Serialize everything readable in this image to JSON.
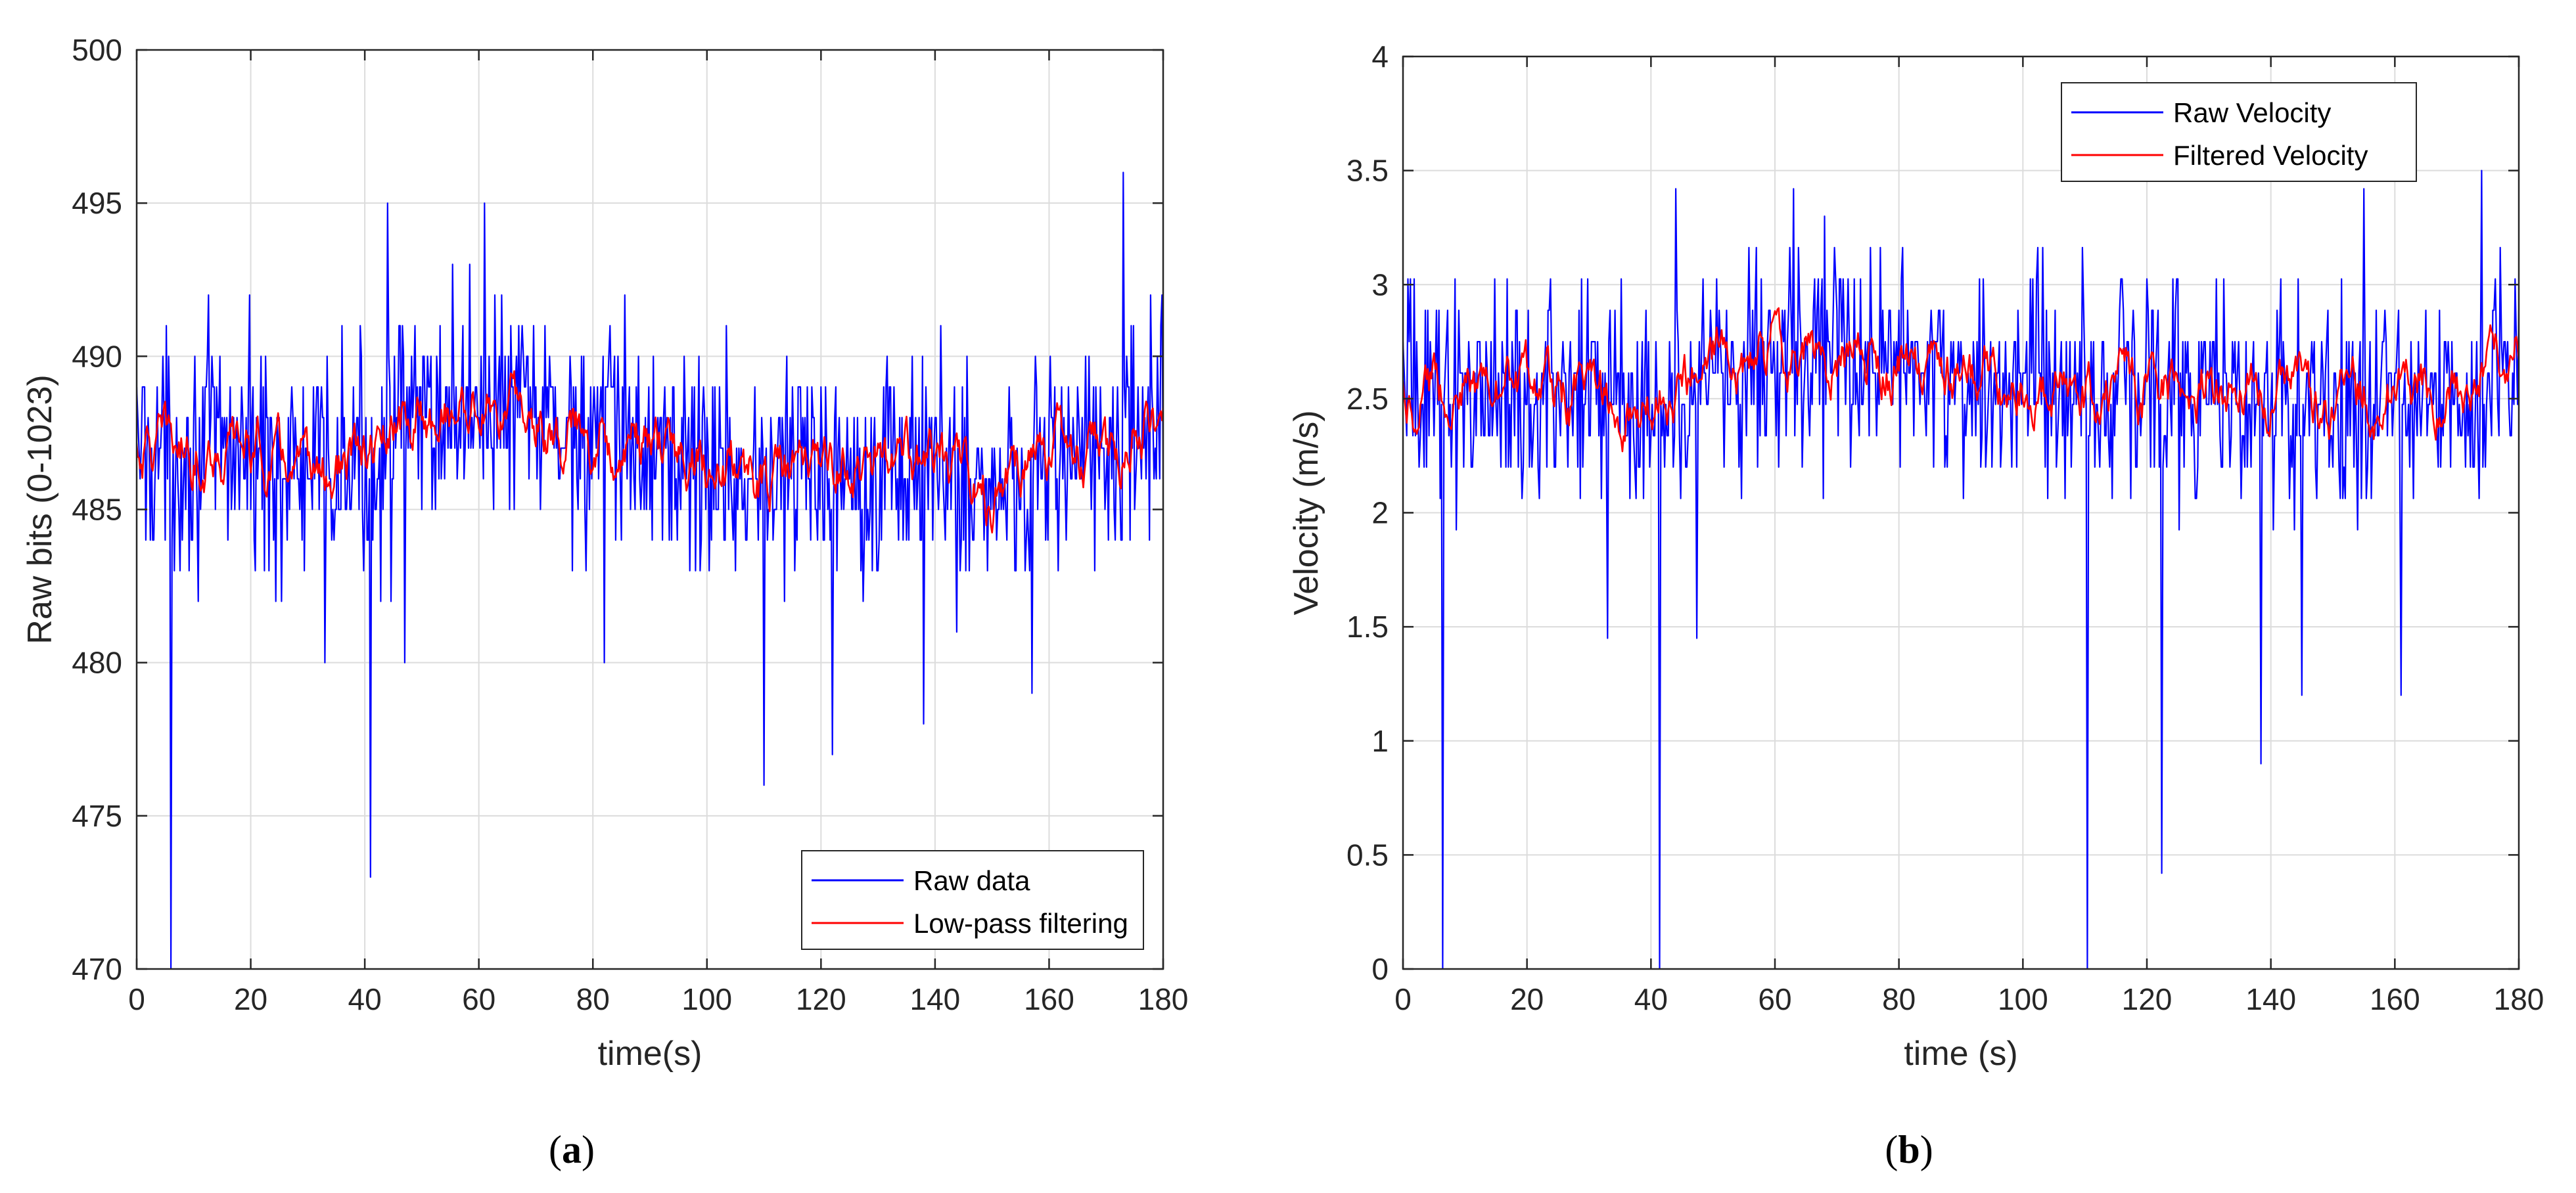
{
  "chart_data": [
    {
      "type": "line",
      "panel": "a",
      "caption_open": "(",
      "caption_letter": "a",
      "caption_close": ")",
      "title": "",
      "xlabel": "time(s)",
      "ylabel": "Raw bits (0-1023)",
      "xlim": [
        0,
        180
      ],
      "ylim": [
        470,
        500
      ],
      "xticks": [
        0,
        20,
        40,
        60,
        80,
        100,
        120,
        140,
        160,
        180
      ],
      "yticks": [
        470,
        475,
        480,
        485,
        490,
        495,
        500
      ],
      "grid": true,
      "legend_position": "bottom-right",
      "series": [
        {
          "name": "Raw data",
          "color": "#0000ff",
          "noisy": true,
          "baseline": [
            [
              0,
              487
            ],
            [
              20,
              487
            ],
            [
              30,
              486
            ],
            [
              40,
              486.5
            ],
            [
              50,
              488
            ],
            [
              60,
              488.5
            ],
            [
              70,
              488
            ],
            [
              80,
              487.5
            ],
            [
              90,
              487
            ],
            [
              100,
              486.5
            ],
            [
              110,
              486
            ],
            [
              120,
              486.5
            ],
            [
              130,
              486.5
            ],
            [
              140,
              486.5
            ],
            [
              150,
              485.5
            ],
            [
              160,
              487
            ],
            [
              170,
              486.5
            ],
            [
              180,
              488
            ]
          ],
          "spread": 3.2,
          "outliers": [
            [
              6,
              470
            ],
            [
              41,
              473
            ],
            [
              44,
              495
            ],
            [
              61,
              495
            ],
            [
              110,
              476
            ],
            [
              122,
              477
            ],
            [
              138,
              478
            ],
            [
              173,
              496
            ],
            [
              157,
              479
            ],
            [
              33,
              480
            ],
            [
              47,
              480
            ],
            [
              82,
              480
            ]
          ],
          "sample_interval": 0.2
        },
        {
          "name": "Low-pass filtering",
          "color": "#ff0000",
          "noisy": true,
          "baseline": [
            [
              0,
              487
            ],
            [
              20,
              487
            ],
            [
              30,
              486
            ],
            [
              40,
              486.5
            ],
            [
              50,
              488
            ],
            [
              60,
              488.5
            ],
            [
              70,
              488
            ],
            [
              80,
              487.5
            ],
            [
              90,
              487
            ],
            [
              100,
              486.5
            ],
            [
              110,
              486
            ],
            [
              120,
              486.5
            ],
            [
              130,
              486.5
            ],
            [
              140,
              486.5
            ],
            [
              150,
              485.5
            ],
            [
              160,
              487
            ],
            [
              170,
              486.5
            ],
            [
              180,
              488
            ]
          ],
          "spread": 1.0,
          "sample_interval": 0.2
        }
      ]
    },
    {
      "type": "line",
      "panel": "b",
      "caption_open": "(",
      "caption_letter": "b",
      "caption_close": ")",
      "title": "",
      "xlabel": "time (s)",
      "ylabel": "Velocity (m/s)",
      "xlim": [
        0,
        180
      ],
      "ylim": [
        0,
        4
      ],
      "xticks": [
        0,
        20,
        40,
        60,
        80,
        100,
        120,
        140,
        160,
        180
      ],
      "yticks": [
        0,
        0.5,
        1,
        1.5,
        2,
        2.5,
        3,
        3.5,
        4
      ],
      "grid": true,
      "legend_position": "top-right",
      "series": [
        {
          "name": "Raw Velocity",
          "color": "#0000ff",
          "noisy": true,
          "baseline": [
            [
              0,
              2.55
            ],
            [
              20,
              2.55
            ],
            [
              30,
              2.5
            ],
            [
              40,
              2.5
            ],
            [
              50,
              2.65
            ],
            [
              60,
              2.7
            ],
            [
              70,
              2.7
            ],
            [
              80,
              2.65
            ],
            [
              90,
              2.6
            ],
            [
              100,
              2.55
            ],
            [
              110,
              2.5
            ],
            [
              120,
              2.55
            ],
            [
              130,
              2.55
            ],
            [
              140,
              2.5
            ],
            [
              150,
              2.45
            ],
            [
              160,
              2.55
            ],
            [
              170,
              2.5
            ],
            [
              180,
              2.7
            ]
          ],
          "spread": 0.42,
          "outliers": [
            [
              6.5,
              0
            ],
            [
              41.5,
              0
            ],
            [
              110.5,
              0
            ],
            [
              122.5,
              0.42
            ],
            [
              138.5,
              0.9
            ],
            [
              161,
              1.2
            ],
            [
              33,
              1.45
            ],
            [
              47.5,
              1.45
            ],
            [
              145,
              1.2
            ],
            [
              44,
              3.42
            ],
            [
              63,
              3.42
            ],
            [
              174,
              3.5
            ],
            [
              155,
              3.42
            ]
          ],
          "sample_interval": 0.2
        },
        {
          "name": "Filtered Velocity",
          "color": "#ff0000",
          "noisy": true,
          "baseline": [
            [
              0,
              2.55
            ],
            [
              20,
              2.55
            ],
            [
              30,
              2.5
            ],
            [
              40,
              2.5
            ],
            [
              50,
              2.65
            ],
            [
              60,
              2.7
            ],
            [
              70,
              2.7
            ],
            [
              80,
              2.65
            ],
            [
              90,
              2.6
            ],
            [
              100,
              2.55
            ],
            [
              110,
              2.5
            ],
            [
              120,
              2.55
            ],
            [
              130,
              2.55
            ],
            [
              140,
              2.5
            ],
            [
              150,
              2.45
            ],
            [
              160,
              2.55
            ],
            [
              170,
              2.5
            ],
            [
              180,
              2.7
            ]
          ],
          "spread": 0.14,
          "sample_interval": 0.2
        }
      ]
    }
  ]
}
